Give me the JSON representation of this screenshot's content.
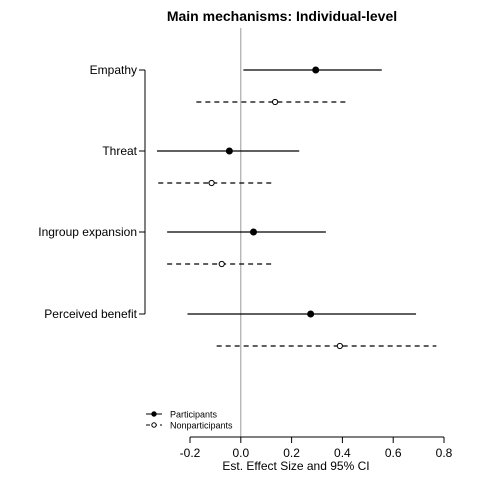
{
  "chart_data": {
    "type": "scatter",
    "title": "Main mechanisms: Individual-level",
    "xlabel": "Est. Effect Size and 95% CI",
    "ylabel": "",
    "xlim": [
      -0.2,
      0.8
    ],
    "x_ticks": [
      -0.2,
      0.0,
      0.2,
      0.4,
      0.6,
      0.8
    ],
    "x_tick_labels": [
      "-0.2",
      "0.0",
      "0.2",
      "0.4",
      "0.6",
      "0.8"
    ],
    "reference_line": 0.0,
    "categories": [
      "Empathy",
      "Threat",
      "Ingroup expansion",
      "Perceived benefit"
    ],
    "series": [
      {
        "name": "Participants",
        "marker": "filled-circle",
        "line": "solid",
        "estimates": [
          0.295,
          -0.045,
          0.05,
          0.275
        ],
        "ci_low": [
          0.01,
          -0.33,
          -0.29,
          -0.21
        ],
        "ci_high": [
          0.555,
          0.23,
          0.335,
          0.69
        ]
      },
      {
        "name": "Nonparticipants",
        "marker": "open-circle",
        "line": "dashed",
        "estimates": [
          0.135,
          -0.115,
          -0.075,
          0.39
        ],
        "ci_low": [
          -0.175,
          -0.325,
          -0.29,
          -0.095
        ],
        "ci_high": [
          0.42,
          0.12,
          0.12,
          0.77
        ]
      }
    ],
    "legend": {
      "position": "bottom-left",
      "entries": [
        "Participants",
        "Nonparticipants"
      ]
    },
    "grid": false
  }
}
